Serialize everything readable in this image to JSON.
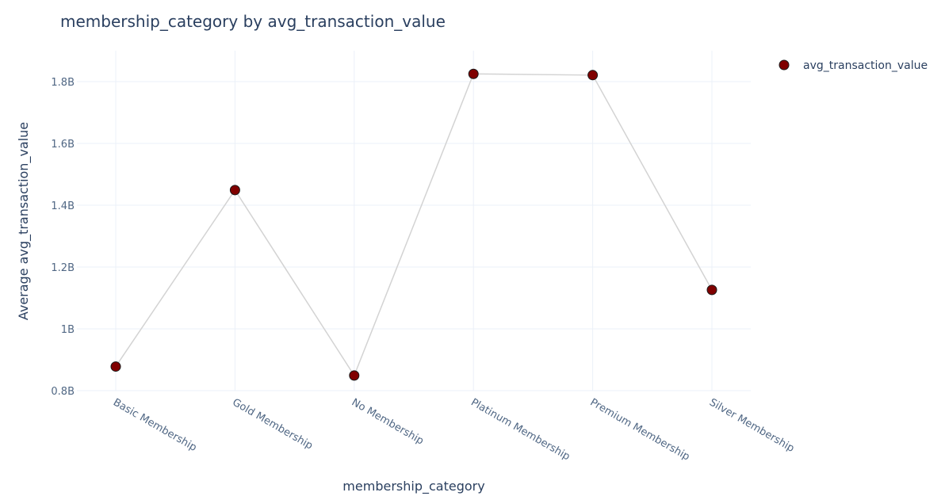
{
  "chart_data": {
    "type": "line",
    "title": "membership_category by avg_transaction_value",
    "xlabel": "membership_category",
    "ylabel": "Average avg_transaction_value",
    "categories": [
      "Basic Membership",
      "Gold Membership",
      "No Membership",
      "Platinum Membership",
      "Premium Membership",
      "Silver Membership"
    ],
    "series": [
      {
        "name": "avg_transaction_value",
        "values": [
          878000000,
          1449000000,
          849000000,
          1825000000,
          1821000000,
          1126000000
        ],
        "marker_color": "#800000",
        "marker_outline": "#1a1a1a",
        "line_color": "#d3d3d3"
      }
    ],
    "ylim": [
      800000000,
      1900000000
    ],
    "yticks": [
      800000000,
      1000000000,
      1200000000,
      1400000000,
      1600000000,
      1800000000
    ],
    "ytick_labels": [
      "0.8B",
      "1B",
      "1.2B",
      "1.4B",
      "1.6B",
      "1.8B"
    ],
    "grid": true,
    "legend_position": "top-right"
  }
}
